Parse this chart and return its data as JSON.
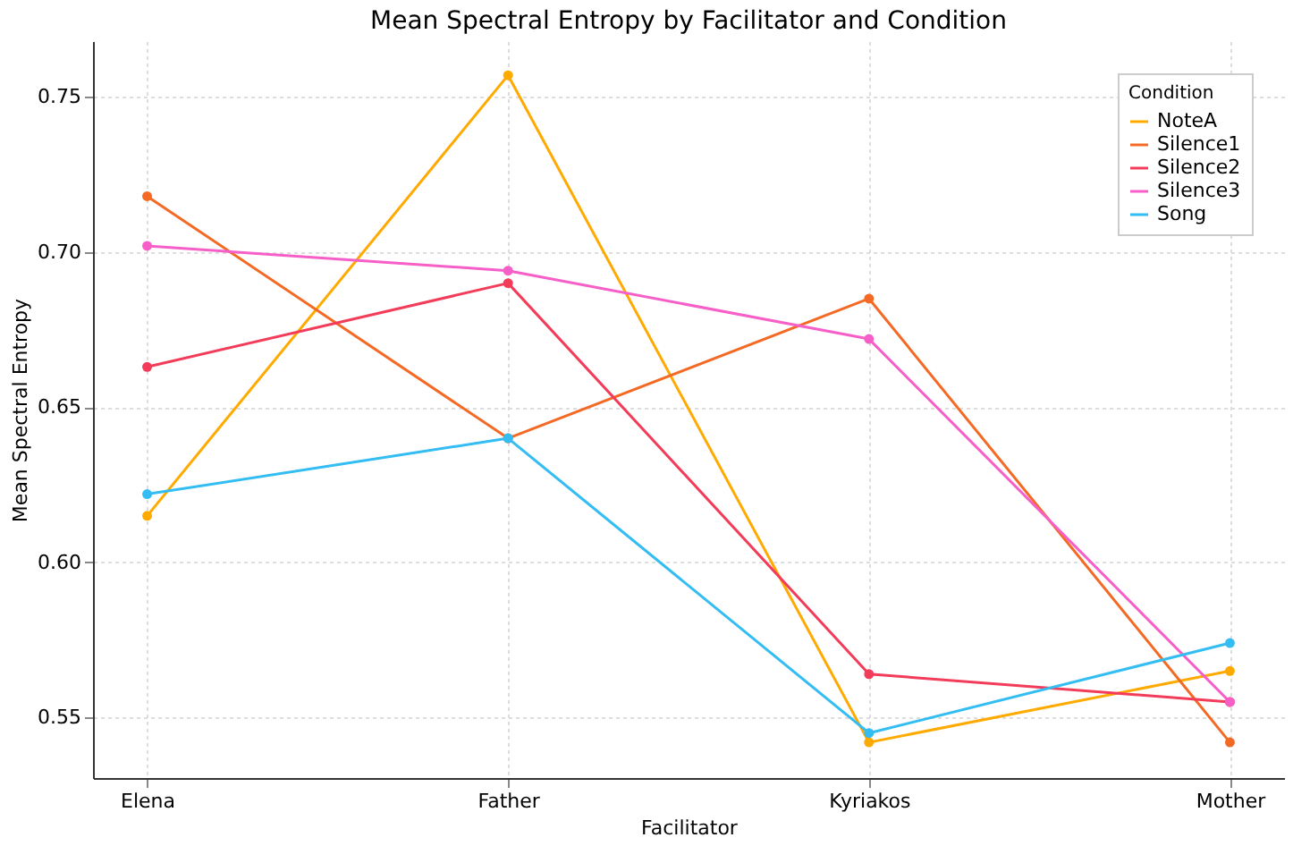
{
  "chart_data": {
    "type": "line",
    "title": "Mean Spectral Entropy by Facilitator and Condition",
    "xlabel": "Facilitator",
    "ylabel": "Mean Spectral Entropy",
    "legend_title": "Condition",
    "categories": [
      "Elena",
      "Father",
      "Kyriakos",
      "Mother"
    ],
    "series": [
      {
        "name": "NoteA",
        "color": "#ffaa00",
        "values": [
          0.615,
          0.757,
          0.542,
          0.565
        ]
      },
      {
        "name": "Silence1",
        "color": "#f46a25",
        "values": [
          0.718,
          0.64,
          0.685,
          0.542
        ]
      },
      {
        "name": "Silence2",
        "color": "#f23c5a",
        "values": [
          0.663,
          0.69,
          0.564,
          0.555
        ]
      },
      {
        "name": "Silence3",
        "color": "#f75fc8",
        "values": [
          0.702,
          0.694,
          0.672,
          0.555
        ]
      },
      {
        "name": "Song",
        "color": "#33bdf2",
        "values": [
          0.622,
          0.64,
          0.545,
          0.574
        ]
      }
    ],
    "ylim": [
      0.5305,
      0.768
    ],
    "yticks": [
      {
        "value": 0.55,
        "label": "0.55"
      },
      {
        "value": 0.6,
        "label": "0.60"
      },
      {
        "value": 0.65,
        "label": "0.65"
      },
      {
        "value": 0.7,
        "label": "0.70"
      },
      {
        "value": 0.75,
        "label": "0.75"
      }
    ],
    "grid": true,
    "legend": "top right",
    "marker": "circle",
    "line_style": "solid"
  }
}
